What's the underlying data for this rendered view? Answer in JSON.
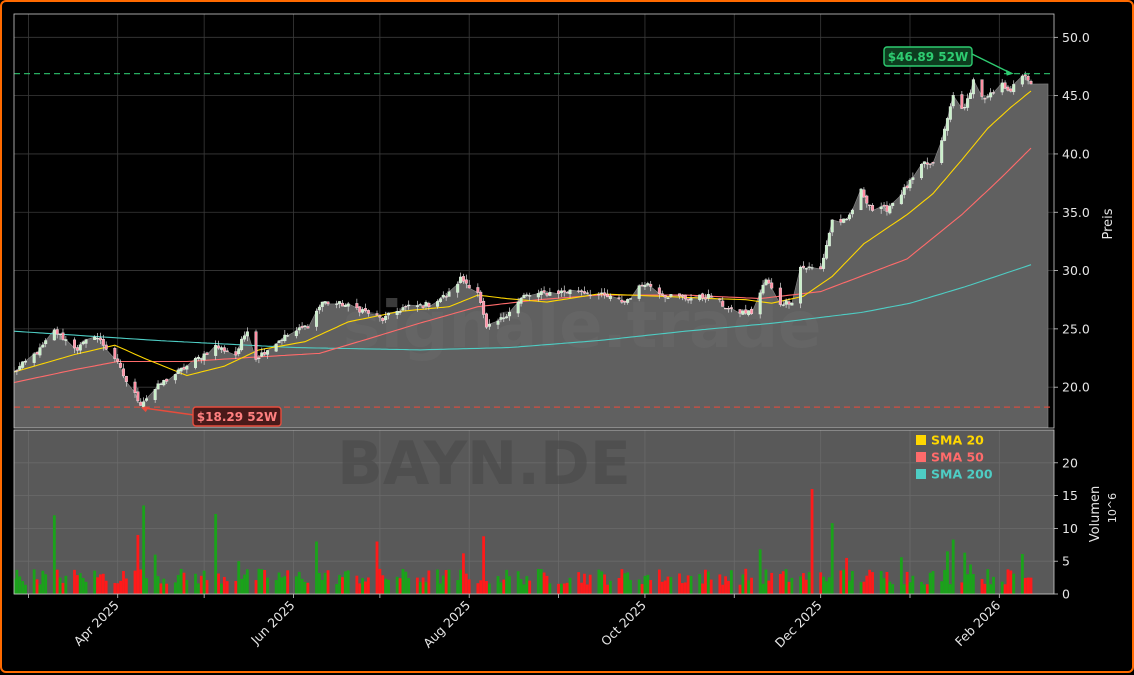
{
  "chart_data": {
    "type": "candlestick",
    "watermark": "BAYN.DE",
    "watermark_brand": "signale.trade",
    "price_axis": {
      "label": "Preis",
      "ticks": [
        20.0,
        25.0,
        30.0,
        35.0,
        40.0,
        45.0,
        50.0
      ],
      "ylim": [
        16.5,
        52.0
      ]
    },
    "volume_axis": {
      "label": "Volumen",
      "exponent_label": "10^6",
      "ticks": [
        0,
        5,
        10,
        15,
        20
      ],
      "ylim": [
        0,
        25
      ]
    },
    "x_axis": {
      "start": "2025-02-24",
      "end": "2026-02-12",
      "ticks": [
        {
          "date": "2025-04-01",
          "label": "Apr 2025"
        },
        {
          "date": "2025-06-01",
          "label": "Jun 2025"
        },
        {
          "date": "2025-08-01",
          "label": "Aug 2025"
        },
        {
          "date": "2025-10-01",
          "label": "Oct 2025"
        },
        {
          "date": "2025-12-01",
          "label": "Dec 2025"
        },
        {
          "date": "2026-02-01",
          "label": "Feb 2026"
        }
      ]
    },
    "legend": {
      "placement": "lower-panel-top-right",
      "entries": [
        {
          "label": "SMA 20",
          "color": "#FFD700"
        },
        {
          "label": "SMA 50",
          "color": "#FF6B6B"
        },
        {
          "label": "SMA 200",
          "color": "#4ECDC4"
        }
      ]
    },
    "annotations": {
      "high_52w": {
        "label": "$46.89 52W",
        "value": 46.89,
        "date": "2026-02-06",
        "color": "#2ecc71"
      },
      "low_52w": {
        "label": "$18.29 52W",
        "value": 18.29,
        "date": "2025-04-09",
        "color": "#e74c3c"
      }
    },
    "last_price": 46.0,
    "close_anchors": [
      [
        "2025-02-24",
        21.3
      ],
      [
        "2025-03-05",
        23.2
      ],
      [
        "2025-03-10",
        24.8
      ],
      [
        "2025-03-18",
        23.3
      ],
      [
        "2025-03-24",
        24.5
      ],
      [
        "2025-03-31",
        22.5
      ],
      [
        "2025-04-04",
        20.5
      ],
      [
        "2025-04-09",
        18.6
      ],
      [
        "2025-04-16",
        20.3
      ],
      [
        "2025-04-25",
        21.8
      ],
      [
        "2025-05-05",
        23.5
      ],
      [
        "2025-05-12",
        22.8
      ],
      [
        "2025-05-16",
        25.0
      ],
      [
        "2025-05-19",
        22.5
      ],
      [
        "2025-05-28",
        24.2
      ],
      [
        "2025-06-06",
        25.3
      ],
      [
        "2025-06-11",
        27.3
      ],
      [
        "2025-06-18",
        27.1
      ],
      [
        "2025-06-25",
        26.6
      ],
      [
        "2025-07-02",
        25.8
      ],
      [
        "2025-07-09",
        26.8
      ],
      [
        "2025-07-18",
        27.1
      ],
      [
        "2025-07-25",
        28.0
      ],
      [
        "2025-07-29",
        29.3
      ],
      [
        "2025-08-04",
        28.2
      ],
      [
        "2025-08-07",
        25.0
      ],
      [
        "2025-08-12",
        25.8
      ],
      [
        "2025-08-20",
        27.8
      ],
      [
        "2025-08-29",
        28.1
      ],
      [
        "2025-09-08",
        28.3
      ],
      [
        "2025-09-17",
        27.8
      ],
      [
        "2025-09-24",
        27.3
      ],
      [
        "2025-10-01",
        29.0
      ],
      [
        "2025-10-08",
        27.9
      ],
      [
        "2025-10-16",
        27.6
      ],
      [
        "2025-10-24",
        27.8
      ],
      [
        "2025-10-31",
        26.5
      ],
      [
        "2025-11-07",
        26.4
      ],
      [
        "2025-11-12",
        29.2
      ],
      [
        "2025-11-17",
        27.2
      ],
      [
        "2025-11-21",
        27.4
      ],
      [
        "2025-11-24",
        30.3
      ],
      [
        "2025-11-28",
        30.2
      ],
      [
        "2025-12-01",
        30.1
      ],
      [
        "2025-12-05",
        34.3
      ],
      [
        "2025-12-10",
        34.2
      ],
      [
        "2025-12-15",
        36.8
      ],
      [
        "2025-12-19",
        35.2
      ],
      [
        "2025-12-24",
        35.3
      ],
      [
        "2025-12-31",
        37.2
      ],
      [
        "2026-01-06",
        39.2
      ],
      [
        "2026-01-09",
        39.0
      ],
      [
        "2026-01-13",
        42.0
      ],
      [
        "2026-01-16",
        45.0
      ],
      [
        "2026-01-20",
        43.8
      ],
      [
        "2026-01-23",
        46.3
      ],
      [
        "2026-01-27",
        44.6
      ],
      [
        "2026-02-02",
        45.9
      ],
      [
        "2026-02-05",
        45.5
      ],
      [
        "2026-02-10",
        46.8
      ],
      [
        "2026-02-12",
        46.0
      ]
    ],
    "sma20_anchors": [
      [
        "2025-02-24",
        21.3
      ],
      [
        "2025-03-17",
        22.8
      ],
      [
        "2025-03-31",
        23.6
      ],
      [
        "2025-04-10",
        22.5
      ],
      [
        "2025-04-25",
        21.0
      ],
      [
        "2025-05-08",
        21.8
      ],
      [
        "2025-05-20",
        23.2
      ],
      [
        "2025-06-05",
        23.9
      ],
      [
        "2025-06-20",
        25.6
      ],
      [
        "2025-07-08",
        26.5
      ],
      [
        "2025-07-25",
        26.9
      ],
      [
        "2025-08-04",
        27.9
      ],
      [
        "2025-08-14",
        27.6
      ],
      [
        "2025-08-28",
        27.3
      ],
      [
        "2025-09-15",
        28.0
      ],
      [
        "2025-10-06",
        27.8
      ],
      [
        "2025-10-24",
        27.6
      ],
      [
        "2025-11-05",
        27.5
      ],
      [
        "2025-11-14",
        27.2
      ],
      [
        "2025-11-25",
        27.8
      ],
      [
        "2025-12-05",
        29.5
      ],
      [
        "2025-12-16",
        32.3
      ],
      [
        "2025-12-31",
        34.8
      ],
      [
        "2026-01-09",
        36.6
      ],
      [
        "2026-01-19",
        39.5
      ],
      [
        "2026-01-28",
        42.2
      ],
      [
        "2026-02-05",
        44.0
      ],
      [
        "2026-02-12",
        45.4
      ]
    ],
    "sma50_anchors": [
      [
        "2025-02-24",
        20.4
      ],
      [
        "2025-03-17",
        21.5
      ],
      [
        "2025-04-01",
        22.2
      ],
      [
        "2025-04-25",
        22.2
      ],
      [
        "2025-05-20",
        22.6
      ],
      [
        "2025-06-10",
        22.9
      ],
      [
        "2025-06-25",
        24.0
      ],
      [
        "2025-07-15",
        25.5
      ],
      [
        "2025-08-04",
        26.9
      ],
      [
        "2025-08-25",
        27.5
      ],
      [
        "2025-09-15",
        27.9
      ],
      [
        "2025-10-15",
        27.9
      ],
      [
        "2025-11-10",
        27.6
      ],
      [
        "2025-12-01",
        28.2
      ],
      [
        "2025-12-31",
        31.0
      ],
      [
        "2026-01-19",
        34.8
      ],
      [
        "2026-02-01",
        37.8
      ],
      [
        "2026-02-12",
        40.5
      ]
    ],
    "sma200_anchors": [
      [
        "2025-02-24",
        24.8
      ],
      [
        "2025-04-15",
        24.0
      ],
      [
        "2025-06-01",
        23.4
      ],
      [
        "2025-07-15",
        23.2
      ],
      [
        "2025-08-15",
        23.4
      ],
      [
        "2025-09-15",
        24.0
      ],
      [
        "2025-10-15",
        24.8
      ],
      [
        "2025-11-15",
        25.5
      ],
      [
        "2025-12-15",
        26.4
      ],
      [
        "2026-01-01",
        27.2
      ],
      [
        "2026-01-20",
        28.6
      ],
      [
        "2026-02-12",
        30.5
      ]
    ],
    "volume_spikes": [
      [
        "2025-03-10",
        12.0
      ],
      [
        "2025-04-08",
        9.0
      ],
      [
        "2025-04-10",
        13.5
      ],
      [
        "2025-04-14",
        6.0
      ],
      [
        "2025-05-05",
        12.2
      ],
      [
        "2025-05-13",
        5.0
      ],
      [
        "2025-06-09",
        8.0
      ],
      [
        "2025-06-30",
        8.0
      ],
      [
        "2025-07-30",
        6.2
      ],
      [
        "2025-08-06",
        8.8
      ],
      [
        "2025-11-10",
        6.8
      ],
      [
        "2025-11-28",
        16.0
      ],
      [
        "2025-12-05",
        10.8
      ],
      [
        "2025-12-10",
        5.5
      ],
      [
        "2025-12-29",
        5.6
      ],
      [
        "2026-01-14",
        6.5
      ],
      [
        "2026-01-16",
        8.3
      ],
      [
        "2026-01-20",
        6.3
      ],
      [
        "2026-01-22",
        4.5
      ],
      [
        "2026-02-09",
        6.1
      ]
    ],
    "volume_baseline": 2.8
  }
}
